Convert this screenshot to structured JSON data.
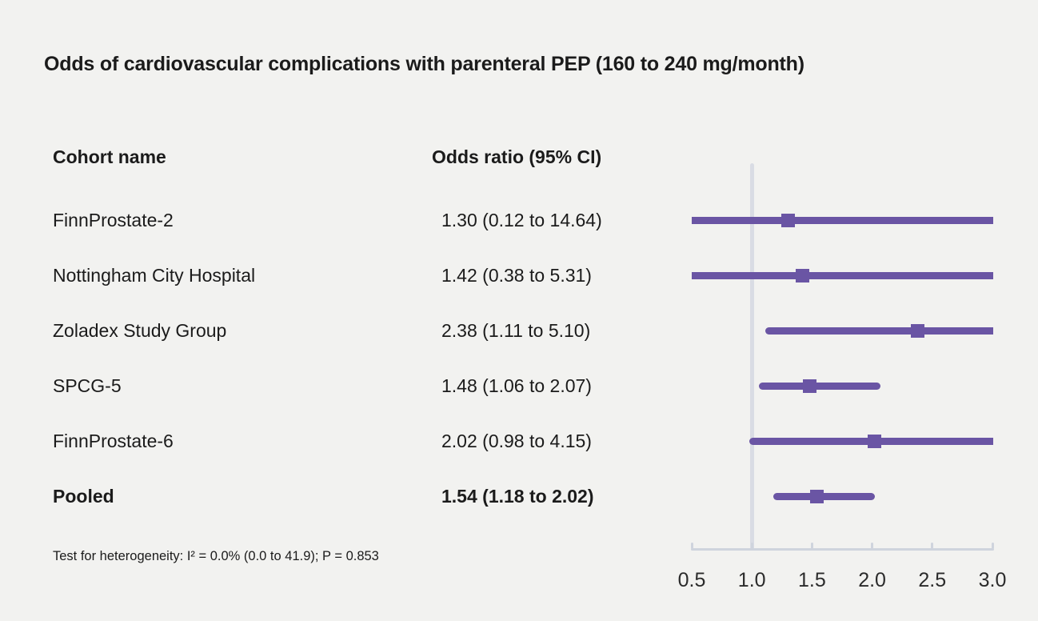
{
  "title": "Odds of cardiovascular complications with parenteral PEP (160 to 240 mg/month)",
  "table": {
    "cohort_header": "Cohort name",
    "or_header": "Odds ratio (95% CI)"
  },
  "footnote": "Test for heterogeneity: I² = 0.0% (0.0 to 41.9); P = 0.853",
  "colors": {
    "background": "#f2f2f0",
    "text": "#1b1b1b",
    "marker": "#6a55a4",
    "reference_line": "#d9dce4",
    "axis": "#cfd4dd"
  },
  "chart_data": {
    "type": "forest",
    "title": "Odds of cardiovascular complications with parenteral PEP (160 to 240 mg/month)",
    "columns": [
      "Cohort name",
      "Odds ratio (95% CI)"
    ],
    "xlim": [
      0.5,
      3.0
    ],
    "reference_line": 1.0,
    "x_ticks": [
      0.5,
      1.0,
      1.5,
      2.0,
      2.5,
      3.0
    ],
    "x_tick_labels": [
      "0.5",
      "1.0",
      "1.5",
      "2.0",
      "2.5",
      "3.0"
    ],
    "studies": [
      {
        "name": "FinnProstate-2",
        "or": 1.3,
        "ci_low": 0.12,
        "ci_high": 14.64,
        "label": "1.30 (0.12 to 14.64)",
        "pooled": false
      },
      {
        "name": "Nottingham City Hospital",
        "or": 1.42,
        "ci_low": 0.38,
        "ci_high": 5.31,
        "label": "1.42 (0.38 to 5.31)",
        "pooled": false
      },
      {
        "name": "Zoladex Study Group",
        "or": 2.38,
        "ci_low": 1.11,
        "ci_high": 5.1,
        "label": "2.38 (1.11 to 5.10)",
        "pooled": false
      },
      {
        "name": "SPCG-5",
        "or": 1.48,
        "ci_low": 1.06,
        "ci_high": 2.07,
        "label": "1.48 (1.06 to 2.07)",
        "pooled": false
      },
      {
        "name": "FinnProstate-6",
        "or": 2.02,
        "ci_low": 0.98,
        "ci_high": 4.15,
        "label": "2.02 (0.98 to 4.15)",
        "pooled": false
      },
      {
        "name": "Pooled",
        "or": 1.54,
        "ci_low": 1.18,
        "ci_high": 2.02,
        "label": "1.54 (1.18 to 2.02)",
        "pooled": true
      }
    ],
    "heterogeneity_note": "Test for heterogeneity: I² = 0.0% (0.0 to 41.9); P = 0.853"
  }
}
